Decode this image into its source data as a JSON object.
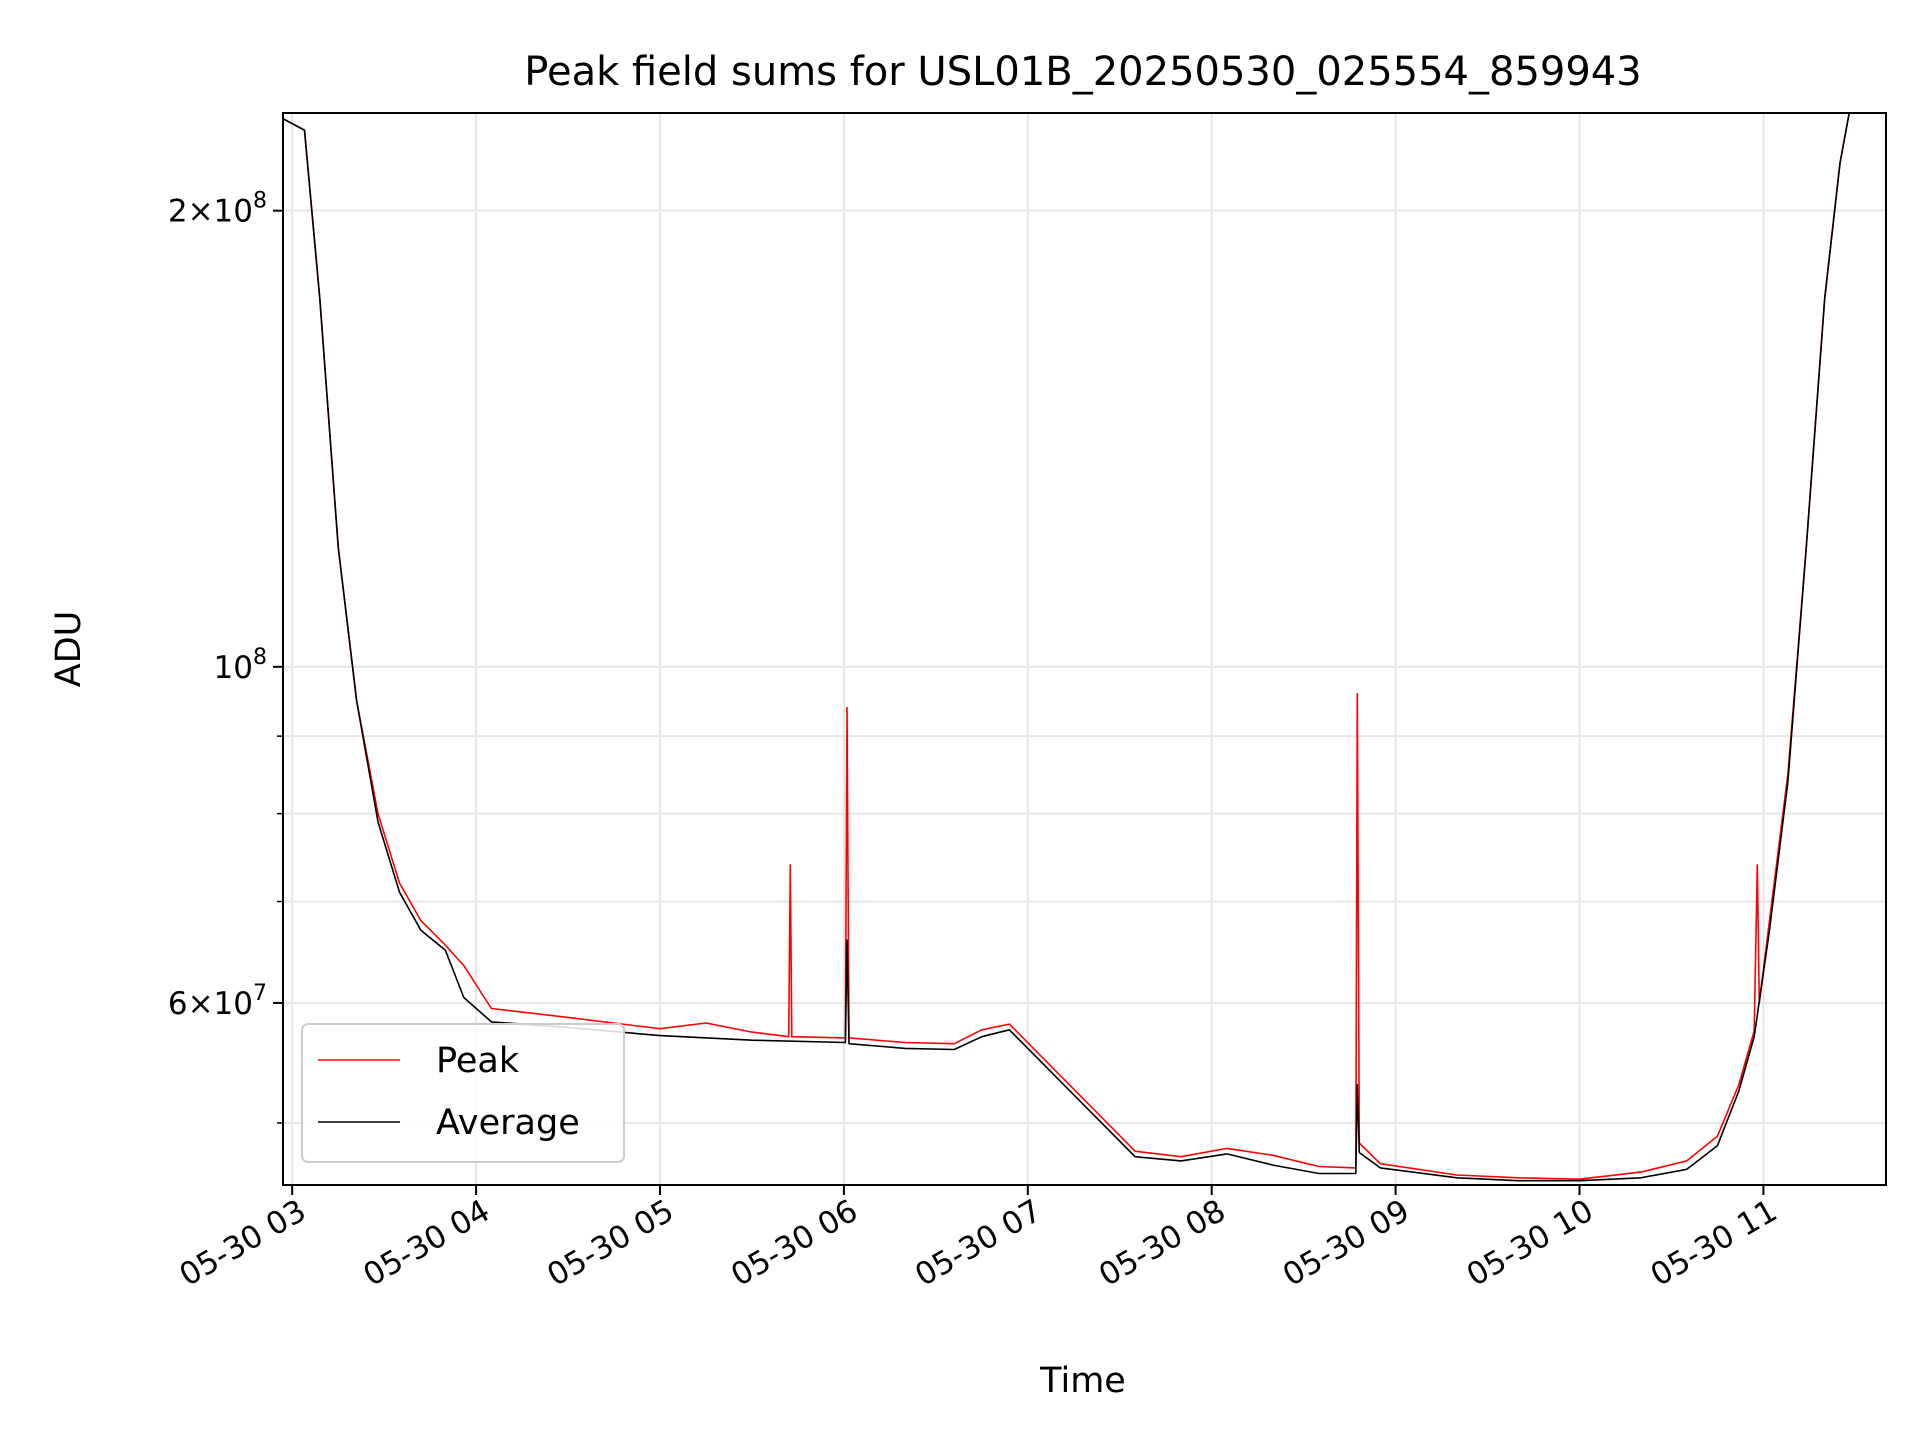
{
  "chart_data": {
    "type": "line",
    "title": "Peak field sums for USL01B_20250530_025554_859943",
    "xlabel": "Time",
    "ylabel": "ADU",
    "yscale": "log",
    "ylim": [
      45500000,
      232000000
    ],
    "xlim": [
      "2025-05-30 02:57:00",
      "2025-05-30 11:40:00"
    ],
    "grid": true,
    "legend": "lower-left",
    "x_ticks": [
      {
        "t": "2025-05-30 03:00",
        "label": "05-30 03"
      },
      {
        "t": "2025-05-30 04:00",
        "label": "05-30 04"
      },
      {
        "t": "2025-05-30 05:00",
        "label": "05-30 05"
      },
      {
        "t": "2025-05-30 06:00",
        "label": "05-30 06"
      },
      {
        "t": "2025-05-30 07:00",
        "label": "05-30 07"
      },
      {
        "t": "2025-05-30 08:00",
        "label": "05-30 08"
      },
      {
        "t": "2025-05-30 09:00",
        "label": "05-30 09"
      },
      {
        "t": "2025-05-30 10:00",
        "label": "05-30 10"
      },
      {
        "t": "2025-05-30 11:00",
        "label": "05-30 11"
      }
    ],
    "y_major_ticks": [
      {
        "v": 60000000,
        "mant": "6",
        "exp": "7"
      },
      {
        "v": 100000000,
        "mant": "",
        "exp": "8"
      },
      {
        "v": 200000000,
        "mant": "2",
        "exp": "8"
      }
    ],
    "y_minor_ticks": [
      50000000,
      70000000,
      80000000,
      90000000
    ],
    "series": [
      {
        "name": "Peak",
        "color": "#ff0000",
        "points": [
          [
            "2025-05-30 02:57:00",
            230000000
          ],
          [
            "2025-05-30 03:04:00",
            226000000
          ],
          [
            "2025-05-30 03:09:00",
            175000000
          ],
          [
            "2025-05-30 03:15:00",
            120000000
          ],
          [
            "2025-05-30 03:21:00",
            95000000
          ],
          [
            "2025-05-30 03:28:00",
            80000000
          ],
          [
            "2025-05-30 03:35:00",
            72000000
          ],
          [
            "2025-05-30 03:42:00",
            68000000
          ],
          [
            "2025-05-30 03:50:00",
            65500000
          ],
          [
            "2025-05-30 03:56:00",
            63500000
          ],
          [
            "2025-05-30 04:05:00",
            59500000
          ],
          [
            "2025-05-30 04:30:00",
            58700000
          ],
          [
            "2025-05-30 05:00:00",
            57700000
          ],
          [
            "2025-05-30 05:15:00",
            58200000
          ],
          [
            "2025-05-30 05:30:00",
            57400000
          ],
          [
            "2025-05-30 05:42:00",
            57000000
          ],
          [
            "2025-05-30 05:42:30",
            74000000
          ],
          [
            "2025-05-30 05:43:00",
            57000000
          ],
          [
            "2025-05-30 06:00:30",
            56900000
          ],
          [
            "2025-05-30 06:01:00",
            94000000
          ],
          [
            "2025-05-30 06:01:40",
            56900000
          ],
          [
            "2025-05-30 06:20:00",
            56500000
          ],
          [
            "2025-05-30 06:36:00",
            56400000
          ],
          [
            "2025-05-30 06:45:00",
            57600000
          ],
          [
            "2025-05-30 06:54:00",
            58100000
          ],
          [
            "2025-05-30 07:35:00",
            47900000
          ],
          [
            "2025-05-30 07:50:00",
            47500000
          ],
          [
            "2025-05-30 08:05:00",
            48100000
          ],
          [
            "2025-05-30 08:20:00",
            47600000
          ],
          [
            "2025-05-30 08:35:00",
            46800000
          ],
          [
            "2025-05-30 08:47:00",
            46700000
          ],
          [
            "2025-05-30 08:47:30",
            96000000
          ],
          [
            "2025-05-30 08:48:10",
            48500000
          ],
          [
            "2025-05-30 08:55:00",
            47000000
          ],
          [
            "2025-05-30 09:20:00",
            46200000
          ],
          [
            "2025-05-30 09:40:00",
            46000000
          ],
          [
            "2025-05-30 10:00:00",
            45900000
          ],
          [
            "2025-05-30 10:20:00",
            46400000
          ],
          [
            "2025-05-30 10:35:00",
            47200000
          ],
          [
            "2025-05-30 10:45:00",
            49000000
          ],
          [
            "2025-05-30 10:52:00",
            53000000
          ],
          [
            "2025-05-30 10:57:00",
            57500000
          ],
          [
            "2025-05-30 10:58:00",
            74000000
          ],
          [
            "2025-05-30 10:58:40",
            60000000
          ],
          [
            "2025-05-30 11:02:00",
            68000000
          ],
          [
            "2025-05-30 11:08:00",
            85000000
          ],
          [
            "2025-05-30 11:14:00",
            120000000
          ],
          [
            "2025-05-30 11:20:00",
            175000000
          ],
          [
            "2025-05-30 11:25:00",
            215000000
          ],
          [
            "2025-05-30 11:28:00",
            232000000
          ]
        ]
      },
      {
        "name": "Average",
        "color": "#000000",
        "points": [
          [
            "2025-05-30 02:57:00",
            230000000
          ],
          [
            "2025-05-30 03:04:00",
            226000000
          ],
          [
            "2025-05-30 03:09:00",
            175000000
          ],
          [
            "2025-05-30 03:15:00",
            120000000
          ],
          [
            "2025-05-30 03:21:00",
            95000000
          ],
          [
            "2025-05-30 03:28:00",
            79000000
          ],
          [
            "2025-05-30 03:35:00",
            71000000
          ],
          [
            "2025-05-30 03:42:00",
            67000000
          ],
          [
            "2025-05-30 03:50:00",
            65000000
          ],
          [
            "2025-05-30 03:56:00",
            60500000
          ],
          [
            "2025-05-30 04:05:00",
            58300000
          ],
          [
            "2025-05-30 04:30:00",
            57800000
          ],
          [
            "2025-05-30 05:00:00",
            57100000
          ],
          [
            "2025-05-30 05:30:00",
            56700000
          ],
          [
            "2025-05-30 06:00:30",
            56500000
          ],
          [
            "2025-05-30 06:01:00",
            66000000
          ],
          [
            "2025-05-30 06:01:40",
            56400000
          ],
          [
            "2025-05-30 06:20:00",
            56000000
          ],
          [
            "2025-05-30 06:36:00",
            55900000
          ],
          [
            "2025-05-30 06:45:00",
            57000000
          ],
          [
            "2025-05-30 06:54:00",
            57600000
          ],
          [
            "2025-05-30 07:35:00",
            47500000
          ],
          [
            "2025-05-30 07:50:00",
            47200000
          ],
          [
            "2025-05-30 08:05:00",
            47700000
          ],
          [
            "2025-05-30 08:20:00",
            46900000
          ],
          [
            "2025-05-30 08:35:00",
            46300000
          ],
          [
            "2025-05-30 08:47:00",
            46300000
          ],
          [
            "2025-05-30 08:47:30",
            53000000
          ],
          [
            "2025-05-30 08:48:10",
            47800000
          ],
          [
            "2025-05-30 08:55:00",
            46700000
          ],
          [
            "2025-05-30 09:20:00",
            46000000
          ],
          [
            "2025-05-30 09:40:00",
            45800000
          ],
          [
            "2025-05-30 10:00:00",
            45800000
          ],
          [
            "2025-05-30 10:20:00",
            46000000
          ],
          [
            "2025-05-30 10:35:00",
            46600000
          ],
          [
            "2025-05-30 10:45:00",
            48300000
          ],
          [
            "2025-05-30 10:52:00",
            52500000
          ],
          [
            "2025-05-30 10:57:00",
            57000000
          ],
          [
            "2025-05-30 11:02:00",
            67000000
          ],
          [
            "2025-05-30 11:08:00",
            84000000
          ],
          [
            "2025-05-30 11:14:00",
            120000000
          ],
          [
            "2025-05-30 11:20:00",
            175000000
          ],
          [
            "2025-05-30 11:25:00",
            215000000
          ],
          [
            "2025-05-30 11:28:00",
            232000000
          ]
        ]
      }
    ]
  }
}
